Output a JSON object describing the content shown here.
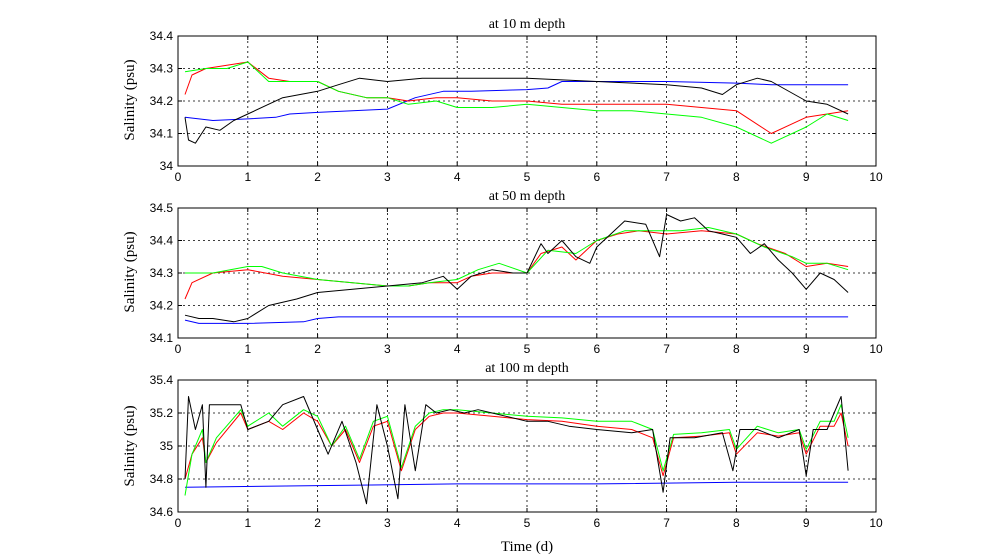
{
  "chart_data": [
    {
      "type": "line",
      "title": "at 10 m depth",
      "ylabel": "Salinity (psu)",
      "xlabel": "",
      "xlim": [
        0,
        10
      ],
      "ylim": [
        34.0,
        34.4
      ],
      "xticks": [
        0,
        1,
        2,
        3,
        4,
        5,
        6,
        7,
        8,
        9,
        10
      ],
      "yticks": [
        34.0,
        34.1,
        34.2,
        34.3,
        34.4
      ],
      "ytick_labels": [
        "34",
        "34.1",
        "34.2",
        "34.3",
        "34.4"
      ],
      "grid": true,
      "series": [
        {
          "color": "#0000ff",
          "x": [
            0.1,
            0.5,
            1.0,
            1.4,
            1.6,
            2.0,
            2.5,
            3.0,
            3.4,
            3.8,
            4.2,
            5.0,
            5.3,
            5.5,
            6.0,
            7.0,
            8.0,
            8.5,
            9.0,
            9.6
          ],
          "y": [
            34.15,
            34.14,
            34.145,
            34.15,
            34.16,
            34.165,
            34.17,
            34.175,
            34.21,
            34.23,
            34.23,
            34.235,
            34.24,
            34.26,
            34.26,
            34.26,
            34.255,
            34.25,
            34.25,
            34.25
          ]
        },
        {
          "color": "#ff0000",
          "x": [
            0.1,
            0.2,
            0.4,
            0.7,
            1.0,
            1.3,
            1.6,
            2.0,
            2.3,
            2.7,
            3.0,
            3.3,
            3.7,
            4.0,
            4.5,
            5.0,
            5.5,
            6.0,
            6.5,
            7.0,
            7.5,
            8.0,
            8.5,
            9.0,
            9.6
          ],
          "y": [
            34.22,
            34.28,
            34.3,
            34.31,
            34.32,
            34.27,
            34.26,
            34.26,
            34.23,
            34.21,
            34.21,
            34.2,
            34.21,
            34.21,
            34.2,
            34.2,
            34.19,
            34.19,
            34.19,
            34.19,
            34.18,
            34.17,
            34.1,
            34.15,
            34.17
          ]
        },
        {
          "color": "#00ff00",
          "x": [
            0.1,
            0.4,
            0.7,
            1.0,
            1.3,
            1.6,
            2.0,
            2.3,
            2.7,
            3.0,
            3.3,
            3.7,
            4.0,
            4.5,
            5.0,
            5.5,
            6.0,
            6.5,
            7.0,
            7.5,
            8.0,
            8.5,
            9.0,
            9.3,
            9.6
          ],
          "y": [
            34.29,
            34.3,
            34.3,
            34.32,
            34.26,
            34.26,
            34.26,
            34.23,
            34.21,
            34.21,
            34.19,
            34.2,
            34.18,
            34.18,
            34.19,
            34.18,
            34.17,
            34.17,
            34.16,
            34.15,
            34.12,
            34.07,
            34.12,
            34.16,
            34.14
          ]
        },
        {
          "color": "#000000",
          "x": [
            0.1,
            0.15,
            0.25,
            0.4,
            0.6,
            0.8,
            1.0,
            1.5,
            2.0,
            2.3,
            2.6,
            3.0,
            3.5,
            4.0,
            5.0,
            6.0,
            7.0,
            7.5,
            7.8,
            8.0,
            8.3,
            8.5,
            9.0,
            9.3,
            9.6
          ],
          "y": [
            34.15,
            34.08,
            34.07,
            34.12,
            34.11,
            34.14,
            34.16,
            34.21,
            34.23,
            34.25,
            34.27,
            34.26,
            34.27,
            34.27,
            34.27,
            34.26,
            34.25,
            34.24,
            34.22,
            34.25,
            34.27,
            34.26,
            34.2,
            34.19,
            34.16
          ]
        }
      ]
    },
    {
      "type": "line",
      "title": "at 50 m depth",
      "ylabel": "Salinity (psu)",
      "xlabel": "",
      "xlim": [
        0,
        10
      ],
      "ylim": [
        34.1,
        34.5
      ],
      "xticks": [
        0,
        1,
        2,
        3,
        4,
        5,
        6,
        7,
        8,
        9,
        10
      ],
      "yticks": [
        34.1,
        34.2,
        34.3,
        34.4,
        34.5
      ],
      "ytick_labels": [
        "34.1",
        "34.2",
        "34.3",
        "34.4",
        "34.5"
      ],
      "grid": true,
      "series": [
        {
          "color": "#0000ff",
          "x": [
            0.1,
            0.3,
            1.0,
            1.8,
            2.0,
            2.3,
            3.0,
            9.6
          ],
          "y": [
            34.155,
            34.145,
            34.145,
            34.15,
            34.16,
            34.165,
            34.165,
            34.165
          ]
        },
        {
          "color": "#ff0000",
          "x": [
            0.1,
            0.2,
            0.5,
            1.0,
            1.5,
            2.0,
            2.5,
            3.0,
            3.3,
            3.6,
            4.0,
            4.2,
            4.5,
            5.0,
            5.2,
            5.5,
            5.7,
            6.0,
            6.3,
            6.6,
            7.0,
            7.5,
            8.0,
            8.3,
            8.7,
            9.0,
            9.3,
            9.6
          ],
          "y": [
            34.22,
            34.27,
            34.3,
            34.31,
            34.29,
            34.28,
            34.27,
            34.26,
            34.26,
            34.27,
            34.27,
            34.29,
            34.3,
            34.3,
            34.36,
            34.38,
            34.34,
            34.4,
            34.42,
            34.43,
            34.42,
            34.43,
            34.42,
            34.39,
            34.36,
            34.32,
            34.33,
            34.32
          ]
        },
        {
          "color": "#00ff00",
          "x": [
            0.1,
            0.5,
            1.0,
            1.2,
            1.5,
            2.0,
            2.5,
            3.0,
            3.3,
            3.6,
            4.0,
            4.3,
            4.6,
            5.0,
            5.3,
            5.7,
            6.0,
            6.4,
            6.8,
            7.2,
            7.6,
            8.0,
            8.4,
            8.8,
            9.0,
            9.3,
            9.6
          ],
          "y": [
            34.3,
            34.3,
            34.32,
            34.32,
            34.3,
            34.28,
            34.27,
            34.26,
            34.26,
            34.27,
            34.28,
            34.31,
            34.33,
            34.3,
            34.37,
            34.36,
            34.4,
            34.43,
            34.43,
            34.43,
            34.44,
            34.42,
            34.38,
            34.35,
            34.33,
            34.33,
            34.31
          ]
        },
        {
          "color": "#000000",
          "x": [
            0.1,
            0.3,
            0.5,
            0.8,
            1.0,
            1.3,
            1.7,
            2.0,
            2.5,
            3.0,
            3.5,
            3.8,
            4.0,
            4.2,
            4.5,
            4.8,
            5.0,
            5.2,
            5.3,
            5.5,
            5.7,
            5.9,
            6.0,
            6.2,
            6.4,
            6.7,
            6.9,
            7.0,
            7.2,
            7.4,
            7.6,
            7.8,
            8.0,
            8.2,
            8.4,
            8.6,
            8.8,
            9.0,
            9.2,
            9.4,
            9.6
          ],
          "y": [
            34.17,
            34.16,
            34.16,
            34.15,
            34.16,
            34.2,
            34.22,
            34.24,
            34.25,
            34.26,
            34.27,
            34.29,
            34.25,
            34.29,
            34.31,
            34.3,
            34.3,
            34.39,
            34.36,
            34.4,
            34.35,
            34.33,
            34.38,
            34.42,
            34.46,
            34.45,
            34.35,
            34.48,
            34.46,
            34.47,
            34.43,
            34.42,
            34.41,
            34.36,
            34.39,
            34.34,
            34.3,
            34.25,
            34.3,
            34.28,
            34.24
          ]
        }
      ]
    },
    {
      "type": "line",
      "title": "at 100 m depth",
      "ylabel": "Salinity (psu)",
      "xlabel": "Time (d)",
      "xlim": [
        0,
        10
      ],
      "ylim": [
        34.6,
        35.4
      ],
      "xticks": [
        0,
        1,
        2,
        3,
        4,
        5,
        6,
        7,
        8,
        9,
        10
      ],
      "yticks": [
        34.6,
        34.8,
        35.0,
        35.2,
        35.4
      ],
      "ytick_labels": [
        "34.6",
        "34.8",
        "35",
        "35.2",
        "35.4"
      ],
      "grid": true,
      "series": [
        {
          "color": "#0000ff",
          "x": [
            0.1,
            2.0,
            4.0,
            6.0,
            8.0,
            9.6
          ],
          "y": [
            34.75,
            34.76,
            34.77,
            34.77,
            34.78,
            34.78
          ]
        },
        {
          "color": "#ff0000",
          "x": [
            0.1,
            0.2,
            0.35,
            0.4,
            0.55,
            0.9,
            1.0,
            1.3,
            1.5,
            1.8,
            2.0,
            2.2,
            2.4,
            2.6,
            2.8,
            3.0,
            3.2,
            3.4,
            3.6,
            3.8,
            4.0,
            4.5,
            5.0,
            5.5,
            6.0,
            6.5,
            6.8,
            6.95,
            7.1,
            7.5,
            7.9,
            8.0,
            8.3,
            8.6,
            8.9,
            9.0,
            9.2,
            9.4,
            9.5,
            9.6
          ],
          "y": [
            34.8,
            34.95,
            35.05,
            34.9,
            35.02,
            35.2,
            35.1,
            35.15,
            35.1,
            35.2,
            35.15,
            35.0,
            35.1,
            34.9,
            35.12,
            35.15,
            34.85,
            35.1,
            35.18,
            35.2,
            35.2,
            35.18,
            35.16,
            35.15,
            35.12,
            35.1,
            35.05,
            34.82,
            35.05,
            35.06,
            35.08,
            34.95,
            35.08,
            35.06,
            35.08,
            34.95,
            35.12,
            35.12,
            35.2,
            35.0
          ]
        },
        {
          "color": "#00ff00",
          "x": [
            0.1,
            0.2,
            0.35,
            0.4,
            0.55,
            0.9,
            1.0,
            1.3,
            1.5,
            1.8,
            2.0,
            2.2,
            2.4,
            2.6,
            2.8,
            3.0,
            3.2,
            3.4,
            3.6,
            3.8,
            4.0,
            4.5,
            5.0,
            5.5,
            6.0,
            6.5,
            6.8,
            6.95,
            7.1,
            7.5,
            7.9,
            8.0,
            8.3,
            8.6,
            8.9,
            9.0,
            9.2,
            9.4,
            9.5,
            9.6
          ],
          "y": [
            34.7,
            34.95,
            35.1,
            34.9,
            35.05,
            35.22,
            35.12,
            35.2,
            35.12,
            35.22,
            35.18,
            35.0,
            35.12,
            34.92,
            35.15,
            35.18,
            34.87,
            35.12,
            35.2,
            35.22,
            35.22,
            35.2,
            35.18,
            35.17,
            35.15,
            35.15,
            35.1,
            34.85,
            35.07,
            35.08,
            35.1,
            34.98,
            35.12,
            35.08,
            35.1,
            34.98,
            35.15,
            35.15,
            35.25,
            35.05
          ]
        },
        {
          "color": "#000000",
          "x": [
            0.1,
            0.15,
            0.25,
            0.35,
            0.4,
            0.45,
            0.6,
            0.9,
            1.0,
            1.3,
            1.5,
            1.8,
            2.0,
            2.15,
            2.35,
            2.55,
            2.7,
            2.85,
            3.0,
            3.15,
            3.25,
            3.4,
            3.55,
            3.7,
            3.9,
            4.1,
            4.3,
            4.5,
            4.7,
            5.0,
            5.3,
            5.6,
            6.0,
            6.5,
            6.8,
            6.95,
            7.05,
            7.4,
            7.8,
            7.95,
            8.05,
            8.3,
            8.6,
            8.9,
            9.0,
            9.1,
            9.3,
            9.5,
            9.6
          ],
          "y": [
            34.8,
            35.3,
            35.1,
            35.25,
            34.75,
            35.25,
            35.25,
            35.25,
            35.1,
            35.15,
            35.25,
            35.3,
            35.1,
            34.95,
            35.15,
            34.9,
            34.65,
            35.25,
            35.0,
            34.68,
            35.25,
            34.85,
            35.25,
            35.2,
            35.22,
            35.2,
            35.22,
            35.2,
            35.18,
            35.15,
            35.15,
            35.12,
            35.1,
            35.08,
            35.1,
            34.72,
            35.05,
            35.05,
            35.08,
            34.85,
            35.1,
            35.1,
            35.05,
            35.1,
            34.82,
            35.1,
            35.1,
            35.3,
            34.85
          ]
        }
      ]
    }
  ]
}
